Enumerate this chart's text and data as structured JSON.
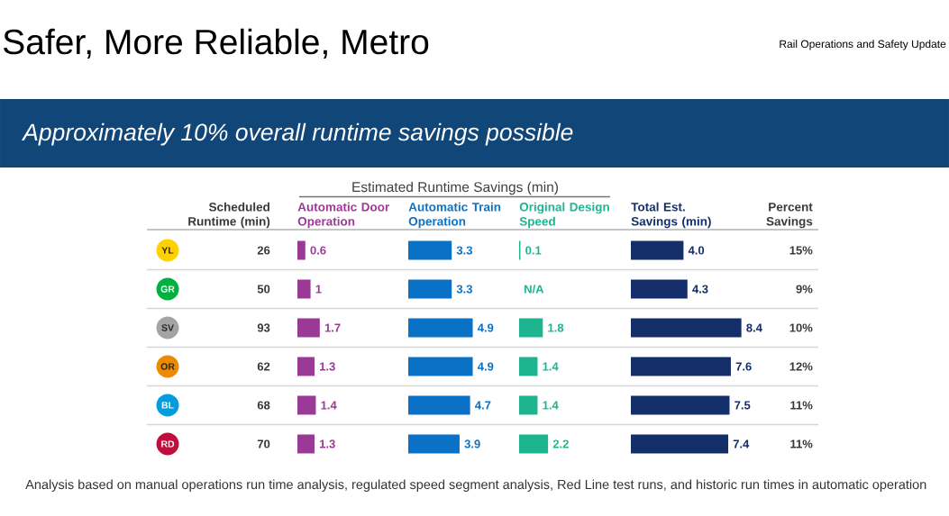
{
  "chart_data": [
    {
      "type": "other",
      "title": "Safer, More Reliable, Metro",
      "subtitle": "Approximately 10% overall runtime savings possible",
      "annotations": [
        "Rail Operations and Safety Update",
        "Estimated Runtime Savings (min)",
        "Analysis based on manual operations run time analysis, regulated speed segment analysis, Red Line test runs, and historic run times in automatic operation"
      ]
    },
    {
      "type": "other",
      "title": "Scheduled Runtime (min)",
      "categories": [
        "YL",
        "GR",
        "SV",
        "OR",
        "BL",
        "RD"
      ],
      "colors": [
        "#ffd100",
        "#00b140",
        "#a2a4a3",
        "#ed8b00",
        "#009cde",
        "#bf0d3e"
      ],
      "values": [
        26,
        50,
        93,
        62,
        68,
        70
      ],
      "data_labels": true
    },
    {
      "type": "bar",
      "orientation": "horizontal",
      "title": "Automatic Door Operation",
      "values": [
        0.6,
        1,
        1.7,
        1.3,
        1.4,
        1.3
      ],
      "color": "#9b3a96",
      "data_labels": true
    },
    {
      "type": "bar",
      "orientation": "horizontal",
      "title": "Automatic Train Operation",
      "values": [
        3.3,
        3.3,
        4.9,
        4.9,
        4.7,
        3.9
      ],
      "color": "#0a72c6",
      "data_labels": true
    },
    {
      "type": "bar",
      "orientation": "horizontal",
      "title": "Original Design Speed",
      "values": [
        0.1,
        null,
        1.8,
        1.4,
        1.4,
        2.2
      ],
      "value_labels": [
        "0.1",
        "N/A",
        "1.8",
        "1.4",
        "1.4",
        "2.2"
      ],
      "color": "#1db590"
    },
    {
      "type": "bar",
      "orientation": "horizontal",
      "title": "Total Est. Savings (min)",
      "values": [
        4.0,
        4.3,
        8.4,
        7.6,
        7.5,
        7.4
      ],
      "value_labels": [
        "4.0",
        "4.3",
        "8.4",
        "7.6",
        "7.5",
        "7.4"
      ],
      "color": "#142e6a"
    },
    {
      "type": "other",
      "title": "Percent Savings",
      "values": [
        15,
        9,
        10,
        12,
        11,
        11
      ],
      "value_labels": [
        "15%",
        "9%",
        "10%",
        "12%",
        "11%",
        "11%"
      ]
    }
  ]
}
